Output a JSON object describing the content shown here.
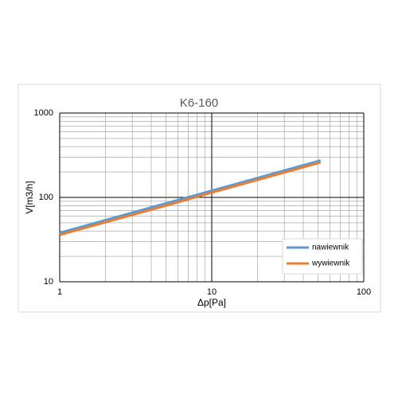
{
  "chart_data": {
    "type": "line",
    "title": "K6-160",
    "x_label": "Δp[Pa]",
    "y_label": "V[m3/h]",
    "x": [
      1,
      5,
      10,
      20,
      52
    ],
    "series": [
      {
        "name": "nawiewnik",
        "color": "#5b9bd5",
        "values": [
          38,
          85,
          120,
          170,
          274
        ]
      },
      {
        "name": "wywiewnik",
        "color": "#ed7d31",
        "values": [
          36,
          80,
          114,
          161,
          260
        ]
      }
    ],
    "xlim": [
      1,
      100
    ],
    "ylim": [
      10,
      1000
    ],
    "xticks": [
      1,
      10,
      100
    ],
    "yticks": [
      10,
      100,
      1000
    ],
    "x_log": true,
    "y_log": true,
    "grid": true,
    "legend": "lower right"
  }
}
